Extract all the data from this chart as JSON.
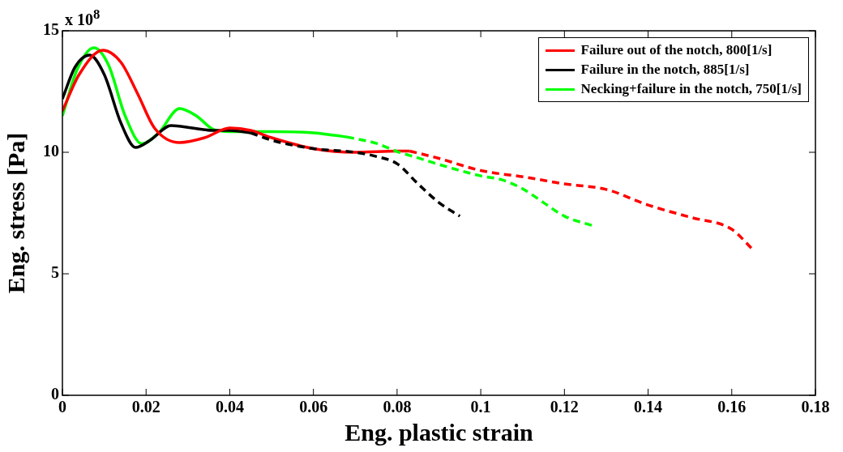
{
  "chart_data": {
    "type": "line",
    "xlabel": "Eng. plastic strain",
    "ylabel": "Eng. stress [Pa]",
    "annotations": [
      "x 10$^{8}$"
    ],
    "xlim": [
      0,
      0.18
    ],
    "ylim": [
      0,
      15
    ],
    "xticks": [
      0,
      0.02,
      0.04,
      0.06,
      0.08,
      0.1,
      0.12,
      0.14,
      0.16,
      0.18
    ],
    "yticks": [
      0,
      5,
      10,
      15
    ],
    "grid": false,
    "legend": "top right",
    "marker": "none",
    "series": [
      {
        "name": "Failure out of the notch, 800[1/s]",
        "color": "#ff0000",
        "line_style": "solid",
        "x": [
          0,
          0.004,
          0.0097,
          0.014,
          0.018,
          0.022,
          0.028,
          0.034,
          0.04,
          0.045,
          0.05,
          0.06,
          0.07,
          0.08,
          0.083
        ],
        "values": [
          11.7,
          13.2,
          14.2,
          13.7,
          12.4,
          11.0,
          10.4,
          10.6,
          11.0,
          10.9,
          10.6,
          10.15,
          10.0,
          10.05,
          10.05
        ]
      },
      {
        "name": "Failure in the notch, 885[1/s]",
        "color": "#000000",
        "line_style": "solid",
        "x": [
          0,
          0.003,
          0.0065,
          0.01,
          0.014,
          0.0175,
          0.021,
          0.026,
          0.031,
          0.036,
          0.04,
          0.045
        ],
        "values": [
          12.2,
          13.5,
          14.0,
          13.2,
          11.2,
          10.2,
          10.5,
          11.1,
          11.0,
          10.9,
          10.9,
          10.8
        ]
      },
      {
        "name": "Necking+failure in the notch, 750[1/s]",
        "color": "#00ff00",
        "line_style": "solid",
        "x": [
          0,
          0.0035,
          0.0075,
          0.011,
          0.015,
          0.019,
          0.023,
          0.028,
          0.032,
          0.036,
          0.04,
          0.05,
          0.06,
          0.065,
          0.068
        ],
        "values": [
          11.5,
          13.4,
          14.3,
          13.6,
          11.5,
          10.35,
          10.8,
          11.8,
          11.5,
          10.95,
          10.85,
          10.85,
          10.8,
          10.7,
          10.63
        ]
      },
      {
        "color": "#ff0000",
        "line_style": "dashed",
        "x": [
          0.083,
          0.09,
          0.1,
          0.111,
          0.12,
          0.13,
          0.14,
          0.15,
          0.16,
          0.165
        ],
        "values": [
          10.05,
          9.75,
          9.25,
          8.97,
          8.7,
          8.47,
          7.83,
          7.33,
          6.83,
          6.0
        ]
      },
      {
        "color": "#000000",
        "line_style": "dashed",
        "x": [
          0.045,
          0.05,
          0.06,
          0.07,
          0.075,
          0.08,
          0.085,
          0.09,
          0.095
        ],
        "values": [
          10.8,
          10.5,
          10.15,
          10.0,
          9.83,
          9.53,
          8.7,
          7.93,
          7.37
        ]
      },
      {
        "color": "#00ff00",
        "line_style": "dashed",
        "x": [
          0.068,
          0.075,
          0.08,
          0.085,
          0.09,
          0.1,
          0.105,
          0.11,
          0.115,
          0.12,
          0.127
        ],
        "values": [
          10.63,
          10.37,
          10.03,
          9.77,
          9.5,
          9.03,
          8.87,
          8.5,
          7.93,
          7.37,
          6.97
        ]
      }
    ]
  }
}
